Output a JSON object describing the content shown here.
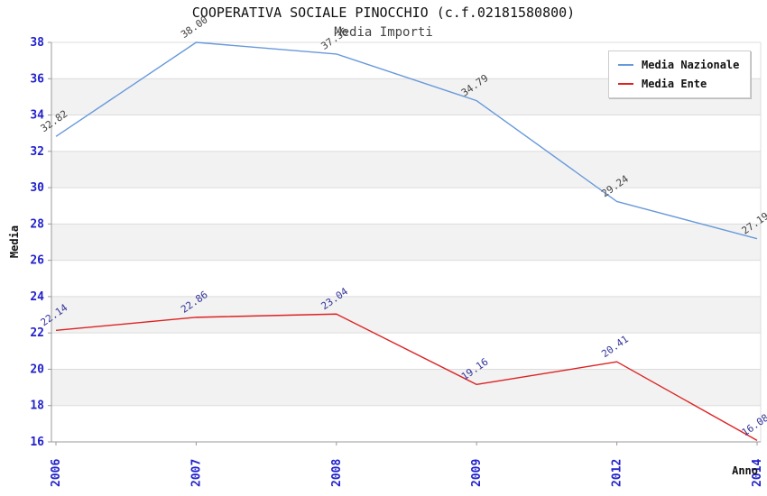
{
  "page": {
    "title": "COOPERATIVA SOCIALE PINOCCHIO (c.f.02181580800)",
    "subtitle": "Media Importi"
  },
  "chart_data": {
    "type": "line",
    "title": "COOPERATIVA SOCIALE PINOCCHIO (c.f.02181580800)",
    "subtitle": "Media Importi",
    "xlabel": "Anno",
    "ylabel": "Media",
    "categories": [
      "2006",
      "2007",
      "2008",
      "2009",
      "2012",
      "2014"
    ],
    "series": [
      {
        "name": "Media Nazionale",
        "color": "#6899db",
        "label_color": "#404040",
        "values": [
          32.82,
          38.0,
          37.36,
          34.79,
          29.24,
          27.19
        ]
      },
      {
        "name": "Media Ente",
        "color": "#dd2222",
        "label_color": "#333399",
        "values": [
          22.14,
          22.86,
          23.04,
          19.16,
          20.41,
          16.08
        ]
      }
    ],
    "ylim": [
      16,
      38
    ],
    "ytick_step": 2,
    "yticks": [
      16,
      18,
      20,
      22,
      24,
      26,
      28,
      30,
      32,
      34,
      36,
      38
    ],
    "grid": true,
    "legend_position": "top-right",
    "tick_label_color": "#2222cc",
    "band_color": "#f2f2f2",
    "gridline_color": "#dcdcdc",
    "axis_color": "#999999",
    "title_color": "#111111",
    "subtitle_color": "#444444"
  }
}
